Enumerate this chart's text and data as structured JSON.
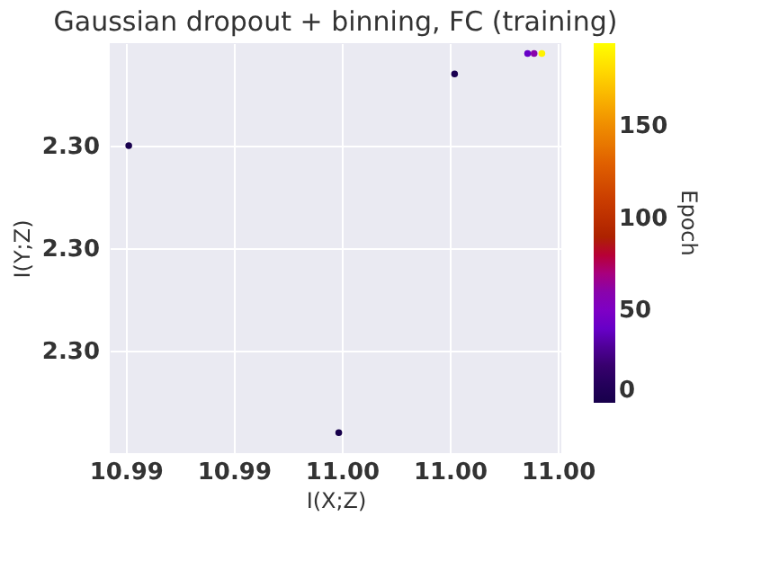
{
  "chart_data": {
    "type": "scatter",
    "title": "Gaussian dropout + binning, FC (training)",
    "xlabel": "I(X;Z)",
    "ylabel": "I(Y;Z)",
    "clabel": "Epoch",
    "x": [
      10.99493,
      10.99007,
      10.99761,
      10.9993,
      10.99945,
      10.99963
    ],
    "values": [
      2.30002,
      2.3003,
      2.30037,
      2.30039,
      2.30039,
      2.30039
    ],
    "cvalues": [
      0,
      2,
      4,
      40,
      60,
      190
    ],
    "clim": [
      0,
      195
    ],
    "cticks": [
      0,
      50,
      100,
      150
    ],
    "xlim": [
      10.98963,
      11.00008
    ],
    "ylim": [
      2.3,
      2.3004
    ],
    "xticks": [
      {
        "value": 10.99,
        "label": "10.99"
      },
      {
        "value": 10.9925,
        "label": "10.99"
      },
      {
        "value": 10.995,
        "label": "11.00"
      },
      {
        "value": 10.9975,
        "label": "11.00"
      },
      {
        "value": 11.0,
        "label": "11.00"
      }
    ],
    "yticks": [
      {
        "value": 2.3001,
        "label": "2.30"
      },
      {
        "value": 2.3002,
        "label": "2.30"
      },
      {
        "value": 2.3003,
        "label": "2.30"
      }
    ],
    "grid": true,
    "marker": "circle"
  }
}
